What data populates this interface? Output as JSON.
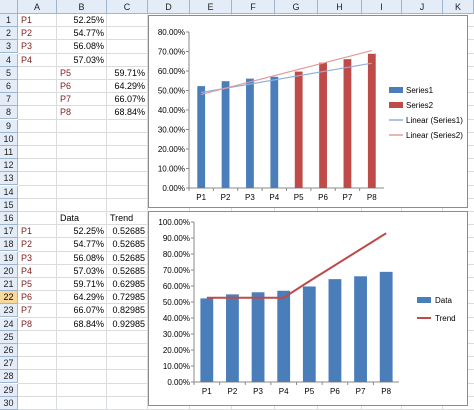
{
  "sheet": {
    "columns": [
      "A",
      "B",
      "C",
      "D",
      "E",
      "F",
      "G",
      "H",
      "I",
      "J",
      "K"
    ],
    "rows": [
      "1",
      "2",
      "3",
      "4",
      "5",
      "6",
      "7",
      "8",
      "9",
      "10",
      "11",
      "12",
      "13",
      "14",
      "15",
      "16",
      "17",
      "18",
      "19",
      "20",
      "21",
      "22",
      "23",
      "24",
      "25",
      "26",
      "27",
      "28",
      "29",
      "30"
    ],
    "selected_row": "22",
    "table1": [
      {
        "label": "P1",
        "value": "52.25%"
      },
      {
        "label": "P2",
        "value": "54.77%"
      },
      {
        "label": "P3",
        "value": "56.08%"
      },
      {
        "label": "P4",
        "value": "57.03%"
      }
    ],
    "table2": [
      {
        "label": "P5",
        "value": "59.71%"
      },
      {
        "label": "P6",
        "value": "64.29%"
      },
      {
        "label": "P7",
        "value": "66.07%"
      },
      {
        "label": "P8",
        "value": "68.84%"
      }
    ],
    "table3_headers": {
      "data": "Data",
      "trend": "Trend"
    },
    "table3": [
      {
        "label": "P1",
        "data": "52.25%",
        "trend": "0.52685"
      },
      {
        "label": "P2",
        "data": "54.77%",
        "trend": "0.52685"
      },
      {
        "label": "P3",
        "data": "56.08%",
        "trend": "0.52685"
      },
      {
        "label": "P4",
        "data": "57.03%",
        "trend": "0.52685"
      },
      {
        "label": "P5",
        "data": "59.71%",
        "trend": "0.62985"
      },
      {
        "label": "P6",
        "data": "64.29%",
        "trend": "0.72985"
      },
      {
        "label": "P7",
        "data": "66.07%",
        "trend": "0.82985"
      },
      {
        "label": "P8",
        "data": "68.84%",
        "trend": "0.92985"
      }
    ]
  },
  "colors": {
    "series1": "#4a7ebb",
    "series2": "#be4b48",
    "trend_line": "#be4b48",
    "linear1": "#8fb0dd",
    "linear2": "#e39a98"
  },
  "chart_data": [
    {
      "type": "bar",
      "categories": [
        "P1",
        "P2",
        "P3",
        "P4",
        "P5",
        "P6",
        "P7",
        "P8"
      ],
      "series": [
        {
          "name": "Series1",
          "values": [
            52.25,
            54.77,
            56.08,
            57.03,
            null,
            null,
            null,
            null
          ]
        },
        {
          "name": "Series2",
          "values": [
            null,
            null,
            null,
            null,
            59.71,
            64.29,
            66.07,
            68.84
          ]
        }
      ],
      "trendlines": [
        {
          "name": "Linear (Series1)",
          "from": [
            1,
            49.0
          ],
          "to": [
            8,
            64.0
          ]
        },
        {
          "name": "Linear (Series2)",
          "from": [
            1,
            48.0
          ],
          "to": [
            8,
            70.5
          ]
        }
      ],
      "ylim": [
        0,
        80
      ],
      "yticks": [
        "0.00%",
        "10.00%",
        "20.00%",
        "30.00%",
        "40.00%",
        "50.00%",
        "60.00%",
        "70.00%",
        "80.00%"
      ],
      "legend": "right"
    },
    {
      "type": "bar",
      "categories": [
        "P1",
        "P2",
        "P3",
        "P4",
        "P5",
        "P6",
        "P7",
        "P8"
      ],
      "series": [
        {
          "name": "Data",
          "values": [
            52.25,
            54.77,
            56.08,
            57.03,
            59.71,
            64.29,
            66.07,
            68.84
          ]
        },
        {
          "name": "Trend",
          "type": "line",
          "values": [
            52.685,
            52.685,
            52.685,
            52.685,
            62.985,
            72.985,
            82.985,
            92.985
          ]
        }
      ],
      "ylim": [
        0,
        100
      ],
      "yticks": [
        "0.00%",
        "10.00%",
        "20.00%",
        "30.00%",
        "40.00%",
        "50.00%",
        "60.00%",
        "70.00%",
        "80.00%",
        "90.00%",
        "100.00%"
      ],
      "legend": "right"
    }
  ]
}
